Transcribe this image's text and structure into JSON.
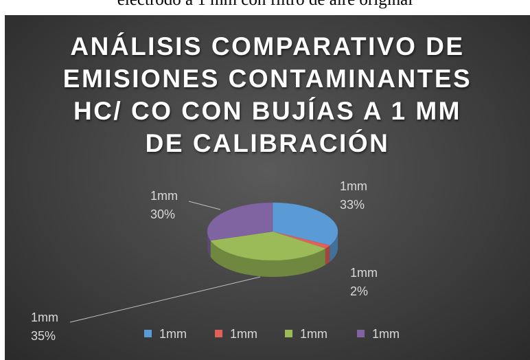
{
  "caption": "electrodo a 1 mm con filtro de aire original",
  "chart_data": {
    "type": "pie3d",
    "title": "ANÁLISIS COMPARATIVO DE\nEMISIONES CONTAMINANTES\nHC/ CO CON BUJÍAS A 1 MM\nDE CALIBRACIÓN",
    "categories": [
      "1mm",
      "1mm",
      "1mm",
      "1mm"
    ],
    "values": [
      33,
      2,
      35,
      30
    ],
    "value_labels": [
      "33%",
      "2%",
      "35%",
      "30%"
    ],
    "colors": [
      "#5b9bd5",
      "#e0605a",
      "#9bbb59",
      "#8064a2"
    ],
    "legend": "bottom"
  }
}
